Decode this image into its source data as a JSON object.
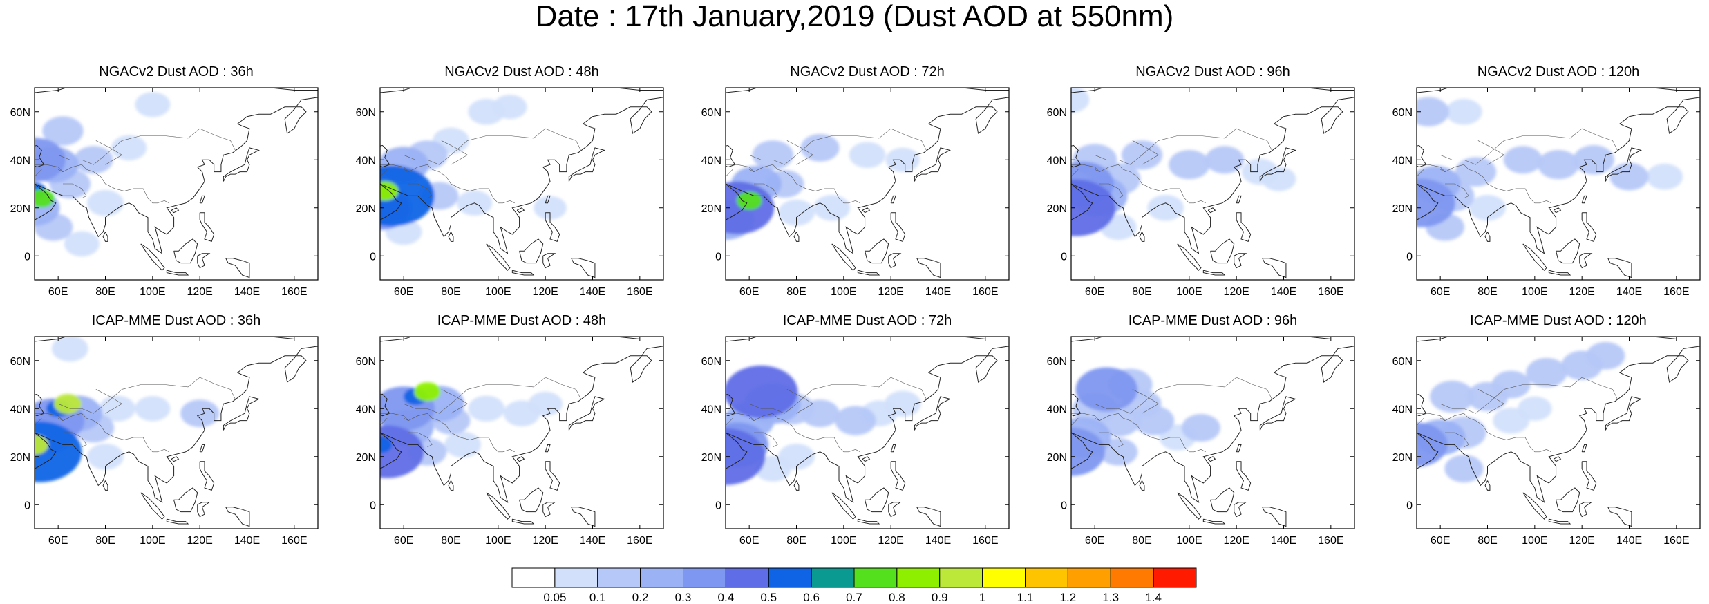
{
  "title": "Date : 17th January,2019 (Dust AOD at 550nm)",
  "panels": [
    {
      "title": "NGACv2 Dust AOD : 36h",
      "row": 0,
      "col": 0,
      "blobs": [
        [
          0,
          27,
          0.55
        ],
        [
          3,
          24,
          0.7
        ],
        [
          0,
          40,
          0.3
        ],
        [
          8,
          38,
          0.2
        ],
        [
          15,
          30,
          0.12
        ],
        [
          30,
          22,
          0.08
        ],
        [
          40,
          45,
          0.07
        ],
        [
          50,
          63,
          0.07
        ],
        [
          25,
          40,
          0.1
        ],
        [
          8,
          12,
          0.1
        ],
        [
          20,
          5,
          0.07
        ],
        [
          0,
          20,
          0.2
        ],
        [
          12,
          52,
          0.12
        ]
      ]
    },
    {
      "title": "NGACv2 Dust AOD : 48h",
      "row": 0,
      "col": 1,
      "blobs": [
        [
          2,
          27,
          0.85
        ],
        [
          5,
          25,
          0.5
        ],
        [
          0,
          20,
          0.3
        ],
        [
          10,
          38,
          0.2
        ],
        [
          20,
          42,
          0.12
        ],
        [
          30,
          48,
          0.08
        ],
        [
          45,
          60,
          0.08
        ],
        [
          55,
          62,
          0.06
        ],
        [
          25,
          25,
          0.1
        ],
        [
          10,
          10,
          0.08
        ],
        [
          72,
          20,
          0.05
        ],
        [
          40,
          22,
          0.07
        ]
      ]
    },
    {
      "title": "NGACv2 Dust AOD : 72h",
      "row": 0,
      "col": 2,
      "blobs": [
        [
          10,
          23,
          0.7
        ],
        [
          5,
          20,
          0.4
        ],
        [
          0,
          15,
          0.25
        ],
        [
          13,
          30,
          0.2
        ],
        [
          20,
          42,
          0.12
        ],
        [
          40,
          45,
          0.1
        ],
        [
          60,
          42,
          0.08
        ],
        [
          75,
          40,
          0.06
        ],
        [
          45,
          20,
          0.08
        ],
        [
          30,
          18,
          0.08
        ],
        [
          25,
          30,
          0.1
        ]
      ]
    },
    {
      "title": "NGACv2 Dust AOD : 96h",
      "row": 0,
      "col": 3,
      "blobs": [
        [
          2,
          20,
          0.45
        ],
        [
          5,
          30,
          0.3
        ],
        [
          12,
          25,
          0.25
        ],
        [
          20,
          32,
          0.15
        ],
        [
          10,
          40,
          0.15
        ],
        [
          30,
          42,
          0.12
        ],
        [
          50,
          38,
          0.12
        ],
        [
          65,
          40,
          0.1
        ],
        [
          80,
          35,
          0.08
        ],
        [
          88,
          32,
          0.06
        ],
        [
          40,
          20,
          0.08
        ],
        [
          20,
          12,
          0.08
        ],
        [
          0,
          65,
          0.08
        ]
      ]
    },
    {
      "title": "NGACv2 Dust AOD : 120h",
      "row": 0,
      "col": 4,
      "blobs": [
        [
          2,
          22,
          0.35
        ],
        [
          8,
          30,
          0.2
        ],
        [
          15,
          25,
          0.15
        ],
        [
          25,
          35,
          0.12
        ],
        [
          45,
          40,
          0.1
        ],
        [
          60,
          38,
          0.12
        ],
        [
          75,
          40,
          0.12
        ],
        [
          90,
          33,
          0.1
        ],
        [
          105,
          33,
          0.08
        ],
        [
          30,
          20,
          0.08
        ],
        [
          5,
          60,
          0.12
        ],
        [
          20,
          60,
          0.08
        ],
        [
          12,
          12,
          0.1
        ]
      ]
    },
    {
      "title": "ICAP-MME Dust AOD : 36h",
      "row": 1,
      "col": 0,
      "blobs": [
        [
          0,
          25,
          0.9
        ],
        [
          2,
          22,
          0.5
        ],
        [
          10,
          40,
          0.55
        ],
        [
          14,
          42,
          0.9
        ],
        [
          8,
          35,
          0.3
        ],
        [
          5,
          30,
          0.25
        ],
        [
          18,
          38,
          0.2
        ],
        [
          25,
          32,
          0.12
        ],
        [
          35,
          40,
          0.08
        ],
        [
          50,
          40,
          0.07
        ],
        [
          70,
          38,
          0.1
        ],
        [
          30,
          20,
          0.08
        ],
        [
          15,
          65,
          0.08
        ]
      ]
    },
    {
      "title": "ICAP-MME Dust AOD : 48h",
      "row": 1,
      "col": 1,
      "blobs": [
        [
          0,
          25,
          0.55
        ],
        [
          3,
          22,
          0.4
        ],
        [
          15,
          45,
          0.55
        ],
        [
          20,
          47,
          0.8
        ],
        [
          10,
          40,
          0.3
        ],
        [
          25,
          42,
          0.2
        ],
        [
          12,
          32,
          0.2
        ],
        [
          30,
          35,
          0.1
        ],
        [
          45,
          40,
          0.08
        ],
        [
          60,
          38,
          0.08
        ],
        [
          70,
          42,
          0.06
        ],
        [
          20,
          22,
          0.1
        ],
        [
          35,
          25,
          0.08
        ]
      ]
    },
    {
      "title": "ICAP-MME Dust AOD : 72h",
      "row": 1,
      "col": 2,
      "blobs": [
        [
          0,
          20,
          0.45
        ],
        [
          5,
          25,
          0.3
        ],
        [
          15,
          47,
          0.4
        ],
        [
          20,
          42,
          0.25
        ],
        [
          10,
          35,
          0.2
        ],
        [
          28,
          40,
          0.15
        ],
        [
          40,
          38,
          0.1
        ],
        [
          55,
          35,
          0.12
        ],
        [
          65,
          38,
          0.08
        ],
        [
          75,
          42,
          0.08
        ],
        [
          30,
          20,
          0.08
        ],
        [
          20,
          15,
          0.08
        ]
      ]
    },
    {
      "title": "ICAP-MME Dust AOD : 96h",
      "row": 1,
      "col": 3,
      "blobs": [
        [
          0,
          22,
          0.35
        ],
        [
          5,
          28,
          0.25
        ],
        [
          15,
          48,
          0.3
        ],
        [
          25,
          50,
          0.15
        ],
        [
          10,
          40,
          0.15
        ],
        [
          20,
          35,
          0.15
        ],
        [
          35,
          35,
          0.12
        ],
        [
          55,
          32,
          0.1
        ],
        [
          30,
          42,
          0.1
        ],
        [
          45,
          28,
          0.08
        ],
        [
          20,
          22,
          0.1
        ]
      ]
    },
    {
      "title": "ICAP-MME Dust AOD : 120h",
      "row": 1,
      "col": 4,
      "blobs": [
        [
          0,
          25,
          0.3
        ],
        [
          10,
          28,
          0.2
        ],
        [
          20,
          30,
          0.15
        ],
        [
          15,
          45,
          0.15
        ],
        [
          30,
          45,
          0.12
        ],
        [
          40,
          50,
          0.1
        ],
        [
          55,
          55,
          0.12
        ],
        [
          70,
          58,
          0.12
        ],
        [
          80,
          62,
          0.1
        ],
        [
          20,
          15,
          0.1
        ],
        [
          40,
          35,
          0.08
        ],
        [
          50,
          40,
          0.06
        ]
      ]
    }
  ],
  "axes": {
    "lon_min": 50,
    "lon_max": 170,
    "lat_min": -10,
    "lat_max": 70,
    "x_ticks": [
      60,
      80,
      100,
      120,
      140,
      160
    ],
    "x_labels": [
      "60E",
      "80E",
      "100E",
      "120E",
      "140E",
      "160E"
    ],
    "y_ticks": [
      0,
      20,
      40,
      60
    ],
    "y_labels": [
      "0",
      "20N",
      "40N",
      "60N"
    ]
  },
  "colorbar": {
    "labels": [
      "0.05",
      "0.1",
      "0.2",
      "0.3",
      "0.4",
      "0.5",
      "0.6",
      "0.7",
      "0.8",
      "0.9",
      "1",
      "1.1",
      "1.2",
      "1.3",
      "1.4"
    ],
    "colors": [
      "#ffffff",
      "#d2e0fb",
      "#b6c8f8",
      "#9bb2f5",
      "#7e97f0",
      "#5f6ee6",
      "#0f64e6",
      "#0a9a92",
      "#55e01e",
      "#8ef000",
      "#bce83a",
      "#ffff00",
      "#ffc400",
      "#ffa000",
      "#ff7a00",
      "#ff1a00"
    ]
  }
}
